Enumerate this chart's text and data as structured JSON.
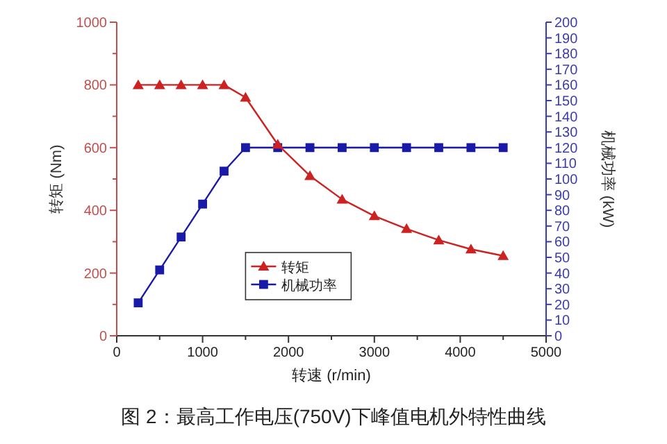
{
  "chart_data": {
    "type": "line",
    "xlabel": "转速 (r/min)",
    "ylabel": "转矩 (Nm)",
    "y2label": "机械功率 (kW)",
    "annotations": [
      "图 2：最高工作电压(750V)下峰值电机外特性曲线"
    ],
    "x": [
      250,
      500,
      750,
      1000,
      1250,
      1500,
      1875,
      2250,
      2625,
      3000,
      3375,
      3750,
      4125,
      4500
    ],
    "series": [
      {
        "name": "转矩",
        "color": "#cc2222",
        "marker": "triangle",
        "values": [
          800,
          800,
          800,
          800,
          800,
          760,
          610,
          510,
          435,
          382,
          341,
          305,
          276,
          255
        ]
      },
      {
        "name": "机械功率",
        "color": "#1a1aa8",
        "marker": "square",
        "axis": "y2",
        "values": [
          21,
          42,
          63,
          84,
          105,
          120,
          120,
          120,
          120,
          120,
          120,
          120,
          120,
          120
        ]
      }
    ],
    "line_style": "solid",
    "xlim": [
      0,
      5000
    ],
    "ylim": [
      0,
      1000
    ],
    "y2lim": [
      0,
      200
    ],
    "xticks": [
      0,
      {
        "value": 500,
        "label": null
      },
      1000,
      {
        "value": 1500,
        "label": null
      },
      2000,
      {
        "value": 2500,
        "label": null
      },
      3000,
      {
        "value": 3500,
        "label": null
      },
      4000,
      {
        "value": 4500,
        "label": null
      },
      5000
    ],
    "yticks": [
      0,
      {
        "value": 100,
        "label": null
      },
      200,
      {
        "value": 300,
        "label": null
      },
      400,
      {
        "value": 500,
        "label": null
      },
      600,
      {
        "value": 700,
        "label": null
      },
      800,
      {
        "value": 900,
        "label": null
      },
      1000
    ],
    "y2ticks": [
      0,
      10,
      20,
      30,
      40,
      50,
      60,
      70,
      80,
      90,
      100,
      110,
      120,
      130,
      140,
      150,
      160,
      170,
      180,
      190,
      200
    ],
    "legend": "bottom"
  }
}
